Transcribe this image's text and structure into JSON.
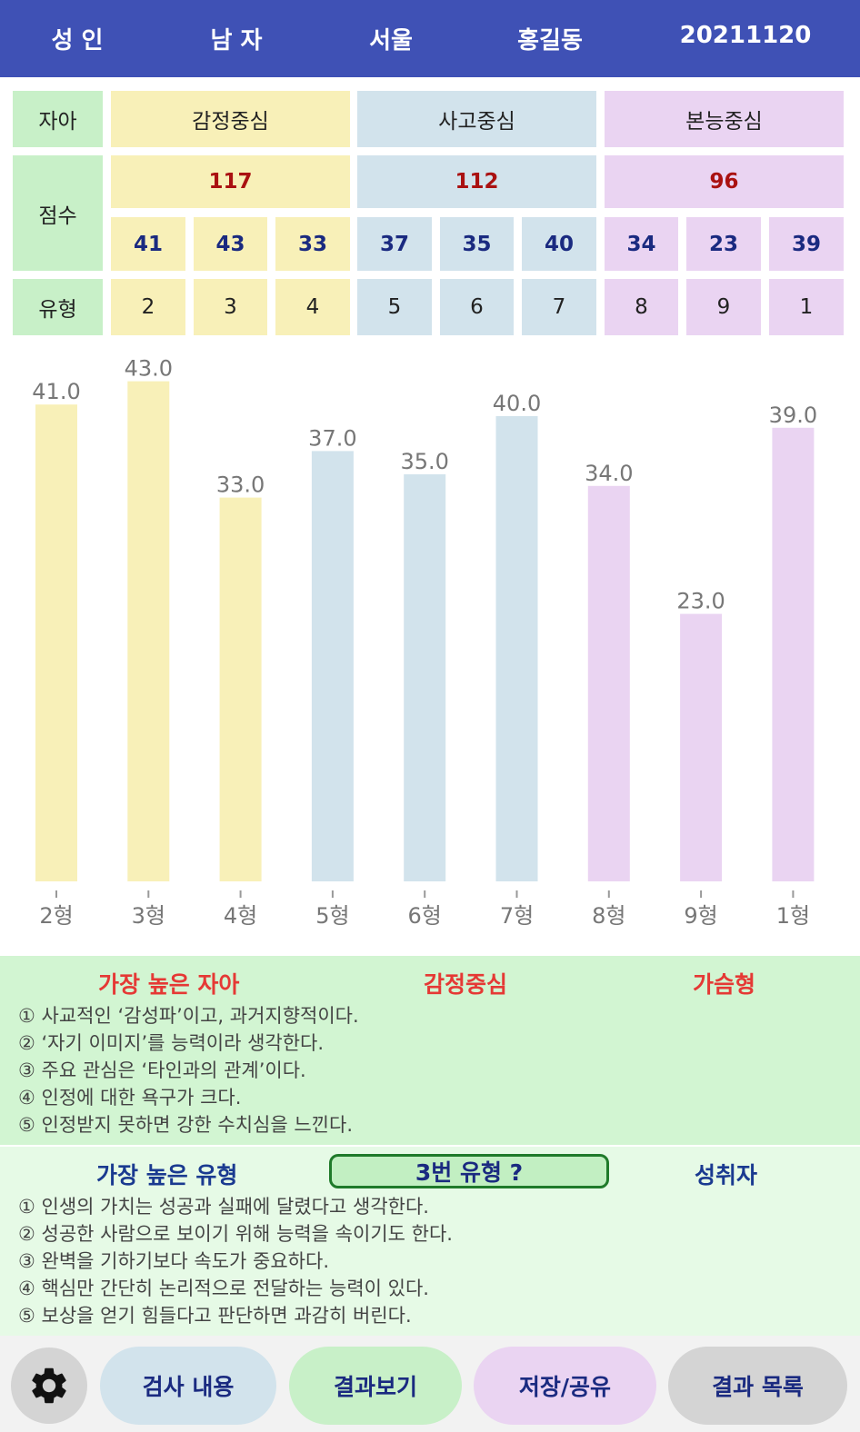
{
  "header": {
    "age_group": "성 인",
    "gender": "남 자",
    "region": "서울",
    "name": "홍길동",
    "date": "20211120"
  },
  "table": {
    "row_labels": {
      "ego": "자아",
      "score": "점수",
      "type": "유형"
    },
    "centers": [
      {
        "name": "감정중심",
        "total": "117",
        "color": "#f8f0b8"
      },
      {
        "name": "사고중심",
        "total": "112",
        "color": "#d2e3ec"
      },
      {
        "name": "본능중심",
        "total": "96",
        "color": "#ead4f2"
      }
    ],
    "type_scores": [
      "41",
      "43",
      "33",
      "37",
      "35",
      "40",
      "34",
      "23",
      "39"
    ],
    "type_numbers": [
      "2",
      "3",
      "4",
      "5",
      "6",
      "7",
      "8",
      "9",
      "1"
    ]
  },
  "chart_data": {
    "type": "bar",
    "categories": [
      "2형",
      "3형",
      "4형",
      "5형",
      "6형",
      "7형",
      "8형",
      "9형",
      "1형"
    ],
    "values": [
      41.0,
      43.0,
      33.0,
      37.0,
      35.0,
      40.0,
      34.0,
      23.0,
      39.0
    ],
    "value_labels": [
      "41.0",
      "43.0",
      "33.0",
      "37.0",
      "35.0",
      "40.0",
      "34.0",
      "23.0",
      "39.0"
    ],
    "bar_colors": [
      "#f8f0b8",
      "#f8f0b8",
      "#f8f0b8",
      "#d2e3ec",
      "#d2e3ec",
      "#d2e3ec",
      "#ead4f2",
      "#ead4f2",
      "#ead4f2"
    ],
    "ylim": [
      0,
      43
    ],
    "grid": false,
    "title": "",
    "xlabel": "",
    "ylabel": ""
  },
  "ego_panel": {
    "title": "가장 높은 자아",
    "center": "감정중심",
    "kind": "가슴형",
    "lines": [
      "① 사교적인 ‘감성파’이고, 과거지향적이다.",
      "② ‘자기 이미지’를 능력이라 생각한다.",
      "③ 주요 관심은 ‘타인과의 관계’이다.",
      "④ 인정에 대한 욕구가 크다.",
      "⑤ 인정받지 못하면 강한 수치심을 느낀다."
    ]
  },
  "type_panel": {
    "title": "가장 높은 유형",
    "type_button": "3번 유형 ?",
    "type_name": "성취자",
    "lines": [
      "① 인생의 가치는 성공과 실패에 달렸다고 생각한다.",
      "② 성공한 사람으로 보이기 위해 능력을 속이기도 한다.",
      "③ 완벽을 기하기보다 속도가 중요하다.",
      "④ 핵심만 간단히 논리적으로 전달하는 능력이 있다.",
      "⑤ 보상을 얻기 힘들다고 판단하면 과감히 버린다."
    ]
  },
  "bottom_bar": {
    "settings_icon": "gear-icon",
    "buttons": [
      "검사 내용",
      "결과보기",
      "저장/공유",
      "결과 목록"
    ]
  },
  "colors": {
    "header": "#3f51b5",
    "label_green": "#c8f0c8",
    "emotion": "#f8f0b8",
    "thinking": "#d2e3ec",
    "instinct": "#ead4f2",
    "score_red": "#aa1111",
    "score_navy": "#1a2a80",
    "panel_title_red": "#e53935"
  }
}
